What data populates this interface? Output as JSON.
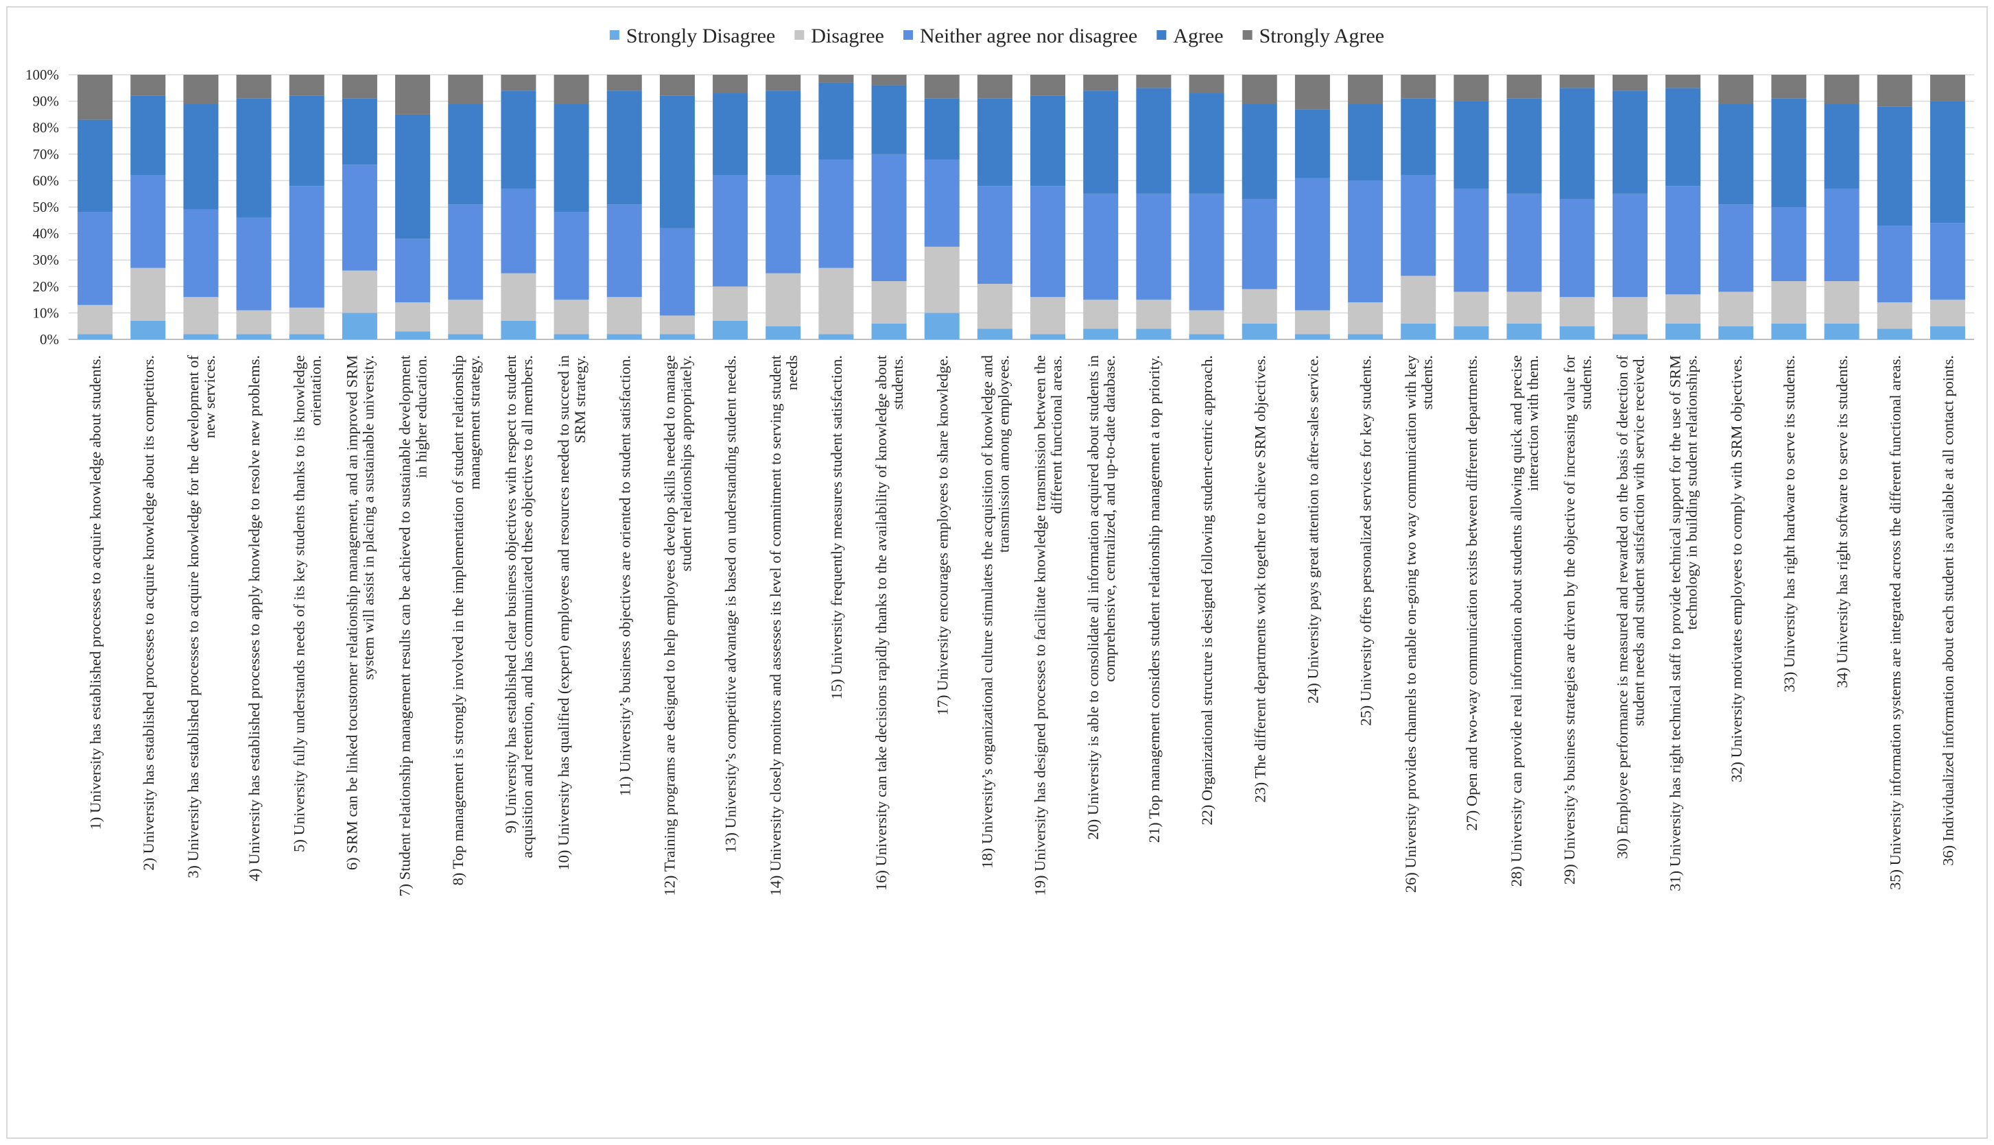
{
  "chart_data": {
    "type": "bar",
    "stacked": true,
    "title": "",
    "xlabel": "",
    "ylabel": "",
    "ylim": [
      0,
      100
    ],
    "y_ticks": [
      "0%",
      "10%",
      "20%",
      "30%",
      "40%",
      "50%",
      "60%",
      "70%",
      "80%",
      "90%",
      "100%"
    ],
    "legend_position": "top-center",
    "colors": {
      "Strongly Disagree": "#6aace6",
      "Disagree": "#c6c6c6",
      "Neither agree nor disagree": "#5b8ee0",
      "Agree": "#3f7fc9",
      "Strongly Agree": "#7a7a7a"
    },
    "series": [
      {
        "name": "Strongly Disagree",
        "values": [
          2,
          7,
          2,
          2,
          2,
          10,
          3,
          2,
          7,
          2,
          2,
          2,
          7,
          5,
          2,
          6,
          10,
          4,
          2,
          4,
          4,
          2,
          6,
          2,
          2,
          6,
          5,
          6,
          5,
          2,
          6,
          5,
          6,
          6,
          4,
          5
        ]
      },
      {
        "name": "Disagree",
        "values": [
          11,
          20,
          14,
          9,
          10,
          16,
          11,
          13,
          18,
          13,
          14,
          7,
          13,
          20,
          25,
          16,
          25,
          17,
          14,
          11,
          11,
          9,
          13,
          9,
          12,
          18,
          13,
          12,
          11,
          14,
          11,
          13,
          16,
          16,
          10,
          10
        ]
      },
      {
        "name": "Neither agree nor disagree",
        "values": [
          35,
          35,
          33,
          35,
          46,
          40,
          24,
          36,
          32,
          33,
          35,
          33,
          42,
          37,
          41,
          48,
          33,
          37,
          42,
          40,
          40,
          44,
          34,
          50,
          46,
          38,
          39,
          37,
          37,
          39,
          41,
          33,
          28,
          35,
          29,
          29
        ]
      },
      {
        "name": "Agree",
        "values": [
          35,
          30,
          40,
          45,
          34,
          25,
          47,
          38,
          37,
          41,
          43,
          50,
          31,
          32,
          29,
          26,
          23,
          33,
          34,
          39,
          40,
          38,
          36,
          26,
          29,
          29,
          33,
          36,
          42,
          39,
          37,
          38,
          41,
          32,
          45,
          46
        ]
      },
      {
        "name": "Strongly Agree",
        "values": [
          17,
          8,
          11,
          9,
          8,
          9,
          15,
          11,
          6,
          11,
          6,
          8,
          7,
          6,
          3,
          4,
          9,
          9,
          8,
          6,
          5,
          7,
          11,
          13,
          11,
          9,
          10,
          9,
          5,
          6,
          5,
          11,
          9,
          11,
          12,
          10
        ]
      }
    ],
    "categories": [
      [
        "1) University has established processes to acquire knowledge about students."
      ],
      [
        "2) University has established processes to acquire knowledge about its competitors."
      ],
      [
        "3) University has established processes to acquire knowledge for the development of",
        "new services."
      ],
      [
        "4) University has established processes to apply knowledge to resolve new problems."
      ],
      [
        "5) University fully understands needs of its key students thanks to its knowledge",
        "orientation."
      ],
      [
        "6) SRM can be linked tocustomer relationship management, and an improved SRM",
        "system will assist in placing a sustainable university."
      ],
      [
        "7) Student relationship management results can be achieved to sustainable development",
        "in higher education."
      ],
      [
        "8) Top management is strongly involved in the implementation of student relationship",
        "management strategy."
      ],
      [
        "9) University has established clear business objectives with respect to student",
        "acquisition and retention, and has communicated these objectives to all members."
      ],
      [
        "10) University has qualified (expert) employees and resources needed to succeed in",
        "SRM strategy."
      ],
      [
        "11) University’s  business  objectives  are oriented to student  satisfaction."
      ],
      [
        "12) Training programs are designed to help employees develop skills needed to manage",
        "student relationships appropriately."
      ],
      [
        "13) University’s  competitive  advantage  is based on understanding  student  needs."
      ],
      [
        "14) University closely monitors and assesses its level of commitment to serving student",
        "needs"
      ],
      [
        "15) University frequently measures student satisfaction."
      ],
      [
        "16) University can take decisions rapidly thanks to the availability of knowledge about",
        "students."
      ],
      [
        "17) University encourages employees to share knowledge."
      ],
      [
        "18) University’s  organizational  culture  stimulates  the acquisition  of knowledge  and",
        "transmission  among  employees."
      ],
      [
        "19) University has designed processes to facilitate knowledge transmission between the",
        "different functional areas."
      ],
      [
        "20) University is able to consolidate all information acquired about students in",
        "comprehensive, centralized, and up-to-date database."
      ],
      [
        "21) Top management considers student relationship management a top priority."
      ],
      [
        "22) Organizational structure is designed following student-centric approach."
      ],
      [
        "23) The different departments work together to achieve SRM objectives."
      ],
      [
        "24) University pays great attention to after-sales service."
      ],
      [
        "25) University offers personalized services for key students."
      ],
      [
        "26) University provides channels to enable on-going two way communication with key",
        "students."
      ],
      [
        "27) Open and two-way communication exists between different departments."
      ],
      [
        "28) University can provide real information about students allowing quick and precise",
        "interaction with them."
      ],
      [
        "29) University’s  business  strategies  are driven  by the objective  of increasing  value  for",
        "students."
      ],
      [
        "30) Employee performance is measured and rewarded on the basis of detection of",
        "student needs and student satisfaction with service received."
      ],
      [
        "31) University has right technical staff to provide technical support for the use of SRM",
        "technology in building student relationships."
      ],
      [
        "32) University motivates employees to comply with SRM objectives."
      ],
      [
        "33) University has right hardware to serve its students."
      ],
      [
        "34) University has right software to serve its students."
      ],
      [
        "35) University information systems are integrated across the different functional areas."
      ],
      [
        "36) Individualized information about each student is available at all contact points."
      ]
    ]
  }
}
